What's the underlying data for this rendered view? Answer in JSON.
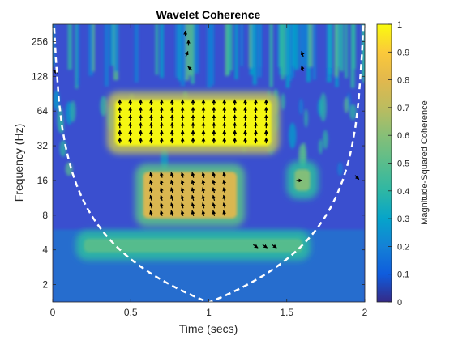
{
  "chart_data": {
    "type": "heatmap",
    "title": "Wavelet Coherence",
    "xlabel": "Time (secs)",
    "ylabel": "Frequency (Hz)",
    "xlim": [
      0,
      2
    ],
    "ylim_log2": [
      0.5,
      8.5
    ],
    "xticks": [
      "0",
      "0.5",
      "1",
      "1.5",
      "2"
    ],
    "xtick_values": [
      0,
      0.5,
      1,
      1.5,
      2
    ],
    "yticks": [
      "2",
      "4",
      "8",
      "16",
      "32",
      "64",
      "128",
      "256"
    ],
    "ytick_values": [
      2,
      4,
      8,
      16,
      32,
      64,
      128,
      256
    ],
    "colorbar": {
      "label": "Magnitude-Squared Coherence",
      "range": [
        0,
        1
      ],
      "ticks": [
        "0",
        "0.1",
        "0.2",
        "0.3",
        "0.4",
        "0.5",
        "0.6",
        "0.7",
        "0.8",
        "0.9",
        "1"
      ],
      "tick_values": [
        0,
        0.1,
        0.2,
        0.3,
        0.4,
        0.5,
        0.6,
        0.7,
        0.8,
        0.9,
        1
      ],
      "colormap": "parula"
    },
    "regions": [
      {
        "name": "high coherence block",
        "t_start": 0.4,
        "t_end": 1.4,
        "f_low": 32,
        "f_high": 80,
        "coherence": 1.0
      },
      {
        "name": "mid coherence block",
        "t_start": 0.58,
        "t_end": 1.18,
        "f_low": 7.5,
        "f_high": 19,
        "coherence": 0.8
      },
      {
        "name": "small patch",
        "t_start": 1.55,
        "t_end": 1.65,
        "f_low": 13,
        "f_high": 20,
        "coherence": 0.6
      },
      {
        "name": "low band",
        "t_start": 0.2,
        "t_end": 1.6,
        "f_low": 3.8,
        "f_high": 5,
        "coherence": 0.5
      }
    ],
    "cone_of_influence": {
      "style": "dashed",
      "color": "#ffffff",
      "min_frequency": 1.4,
      "at_time": 1.0
    },
    "phase_arrows": true,
    "background": "#3a4fcf"
  }
}
